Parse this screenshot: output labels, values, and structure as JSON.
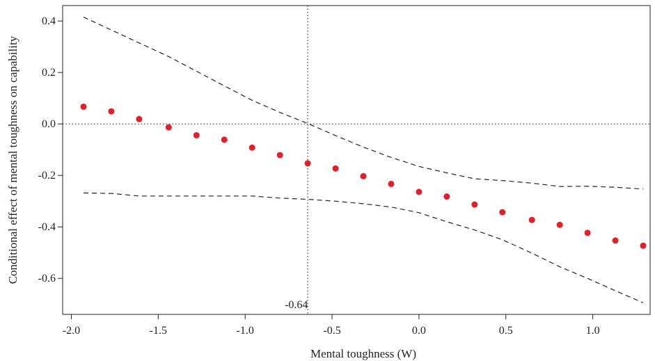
{
  "chart_data": {
    "type": "scatter",
    "title": "",
    "xlabel": "Mental toughness (W)",
    "ylabel": "Conditional effect of mental toughness on capability",
    "xlim": [
      -2.05,
      1.33
    ],
    "ylim": [
      -0.74,
      0.46
    ],
    "x_ticks": [
      -2.0,
      -1.5,
      -1.0,
      -0.5,
      0.0,
      0.5,
      1.0
    ],
    "x_tick_labels": [
      "-2.0",
      "-1.5",
      "-1.0",
      "-0.5",
      "0.0",
      "0.5",
      "1.0"
    ],
    "y_ticks": [
      0.4,
      0.2,
      0.0,
      -0.2,
      -0.4,
      -0.6
    ],
    "y_tick_labels": [
      "0.4",
      "0.2",
      "0.0",
      "-0.2",
      "-0.4",
      "-0.6"
    ],
    "grid": false,
    "reference_lines": {
      "vertical_x": -0.64,
      "horizontal_y": 0.0
    },
    "annotation": "-0.64",
    "point_color": "#e0202a",
    "points": {
      "x": [
        -1.93,
        -1.77,
        -1.61,
        -1.44,
        -1.28,
        -1.12,
        -0.96,
        -0.8,
        -0.64,
        -0.48,
        -0.32,
        -0.16,
        0.0,
        0.16,
        0.32,
        0.48,
        0.65,
        0.81,
        0.97,
        1.13,
        1.29
      ],
      "y": [
        0.067,
        0.049,
        0.019,
        -0.013,
        -0.044,
        -0.061,
        -0.092,
        -0.121,
        -0.153,
        -0.173,
        -0.203,
        -0.233,
        -0.264,
        -0.282,
        -0.313,
        -0.343,
        -0.373,
        -0.392,
        -0.423,
        -0.453,
        -0.473
      ]
    },
    "ci_upper": {
      "x": [
        -1.93,
        -1.77,
        -1.61,
        -1.44,
        -1.28,
        -1.12,
        -0.96,
        -0.8,
        -0.64,
        -0.48,
        -0.32,
        -0.16,
        0.0,
        0.16,
        0.32,
        0.48,
        0.65,
        0.81,
        0.97,
        1.13,
        1.29
      ],
      "y": [
        0.415,
        0.365,
        0.315,
        0.262,
        0.205,
        0.148,
        0.092,
        0.045,
        0.002,
        -0.045,
        -0.09,
        -0.13,
        -0.165,
        -0.19,
        -0.213,
        -0.22,
        -0.23,
        -0.243,
        -0.242,
        -0.246,
        -0.253
      ]
    },
    "ci_lower": {
      "x": [
        -1.93,
        -1.77,
        -1.61,
        -1.44,
        -1.28,
        -1.12,
        -0.96,
        -0.8,
        -0.64,
        -0.48,
        -0.32,
        -0.16,
        0.0,
        0.16,
        0.32,
        0.48,
        0.65,
        0.81,
        0.97,
        1.13,
        1.29
      ],
      "y": [
        -0.268,
        -0.27,
        -0.28,
        -0.28,
        -0.28,
        -0.28,
        -0.28,
        -0.288,
        -0.293,
        -0.3,
        -0.31,
        -0.323,
        -0.345,
        -0.38,
        -0.412,
        -0.45,
        -0.502,
        -0.555,
        -0.6,
        -0.648,
        -0.695
      ]
    }
  }
}
